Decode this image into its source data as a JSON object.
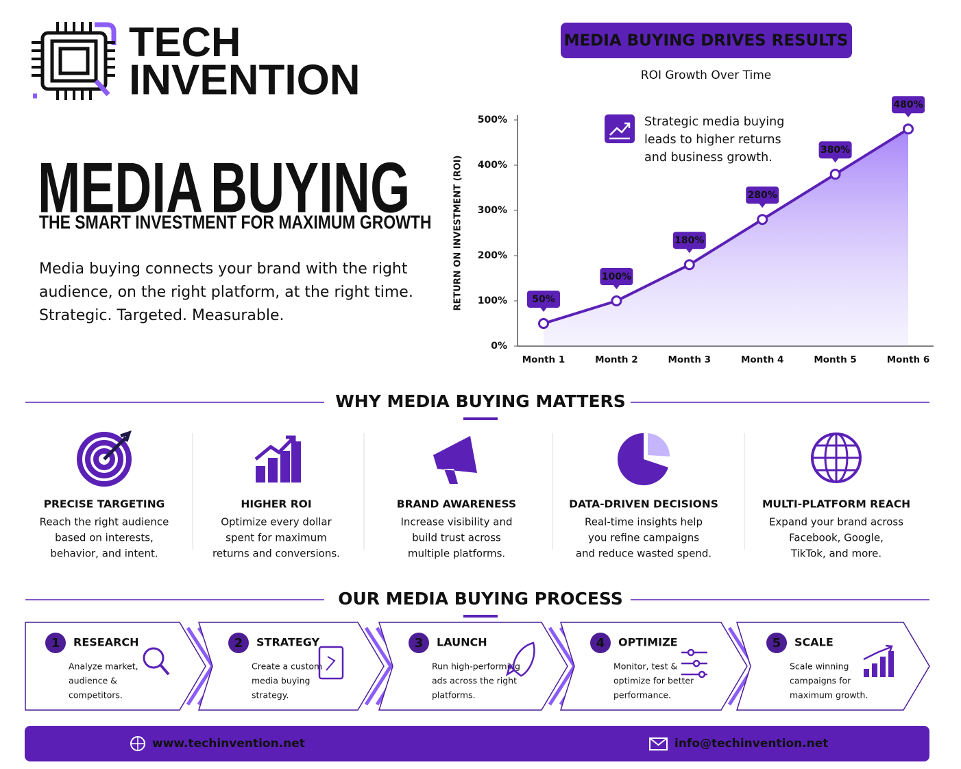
{
  "header": {
    "brand_1": "TECH",
    "brand_2": "INVENTION"
  },
  "hero": {
    "title_1": "MEDIA",
    "title_2": "BUYING",
    "subtitle": "THE SMART INVESTMENT FOR MAXIMUM GROWTH",
    "description": [
      "Media buying connects your brand with the right",
      "audience, on the right platform, at the right time.",
      "Strategic. Targeted. Measurable."
    ]
  },
  "chart_data": {
    "type": "line",
    "title": "MEDIA BUYING DRIVES RESULTS",
    "subtitle": "ROI Growth Over Time",
    "y_label": "RETURN ON INVESTMENT (ROI)",
    "annotation": [
      "Strategic media buying",
      "leads to higher returns",
      "and business growth."
    ],
    "categories": [
      "Month 1",
      "Month 2",
      "Month 3",
      "Month 4",
      "Month 5",
      "Month 6"
    ],
    "values": [
      50,
      100,
      180,
      280,
      380,
      480
    ],
    "value_labels": [
      "50%",
      "100%",
      "180%",
      "280%",
      "380%",
      "480%"
    ],
    "color": "#5b21b6",
    "ylim": [
      0,
      500
    ],
    "yticks": [
      {
        "value": 0,
        "label": "0%"
      },
      {
        "value": 100,
        "label": "100%"
      },
      {
        "value": 200,
        "label": "200%"
      },
      {
        "value": 300,
        "label": "300%"
      },
      {
        "value": 400,
        "label": "400%"
      },
      {
        "value": 500,
        "label": "500%"
      }
    ],
    "grid": false
  },
  "why": {
    "heading": "WHY MEDIA BUYING MATTERS",
    "items": [
      {
        "title": "PRECISE TARGETING",
        "text": [
          "Reach the right audience",
          "based on interests,",
          "behavior, and intent."
        ]
      },
      {
        "title": "HIGHER ROI",
        "text": [
          "Optimize every dollar",
          "spent for maximum",
          "returns and conversions."
        ]
      },
      {
        "title": "BRAND AWARENESS",
        "text": [
          "Increase visibility and",
          "build trust across",
          "multiple platforms."
        ]
      },
      {
        "title": "DATA-DRIVEN DECISIONS",
        "text": [
          "Real-time insights help",
          "you refine campaigns",
          "and reduce wasted spend."
        ]
      },
      {
        "title": "MULTI-PLATFORM REACH",
        "text": [
          "Expand your brand across",
          "Facebook, Google,",
          "TikTok, and more."
        ]
      }
    ]
  },
  "process": {
    "heading": "OUR MEDIA BUYING PROCESS",
    "steps": [
      {
        "number": 1,
        "title": "RESEARCH",
        "text": [
          "Analyze market,",
          "audience &",
          "competitors."
        ]
      },
      {
        "number": 2,
        "title": "STRATEGY",
        "text": [
          "Create a custom",
          "media buying",
          "strategy."
        ]
      },
      {
        "number": 3,
        "title": "LAUNCH",
        "text": [
          "Run high-performing",
          "ads across the right",
          "platforms."
        ]
      },
      {
        "number": 4,
        "title": "OPTIMIZE",
        "text": [
          "Monitor, test &",
          "optimize for better",
          "performance."
        ]
      },
      {
        "number": 5,
        "title": "SCALE",
        "text": [
          "Scale winning",
          "campaigns for",
          "maximum growth."
        ]
      }
    ]
  },
  "footer": {
    "website": "www.techinvention.net",
    "email": "info@techinvention.net"
  }
}
